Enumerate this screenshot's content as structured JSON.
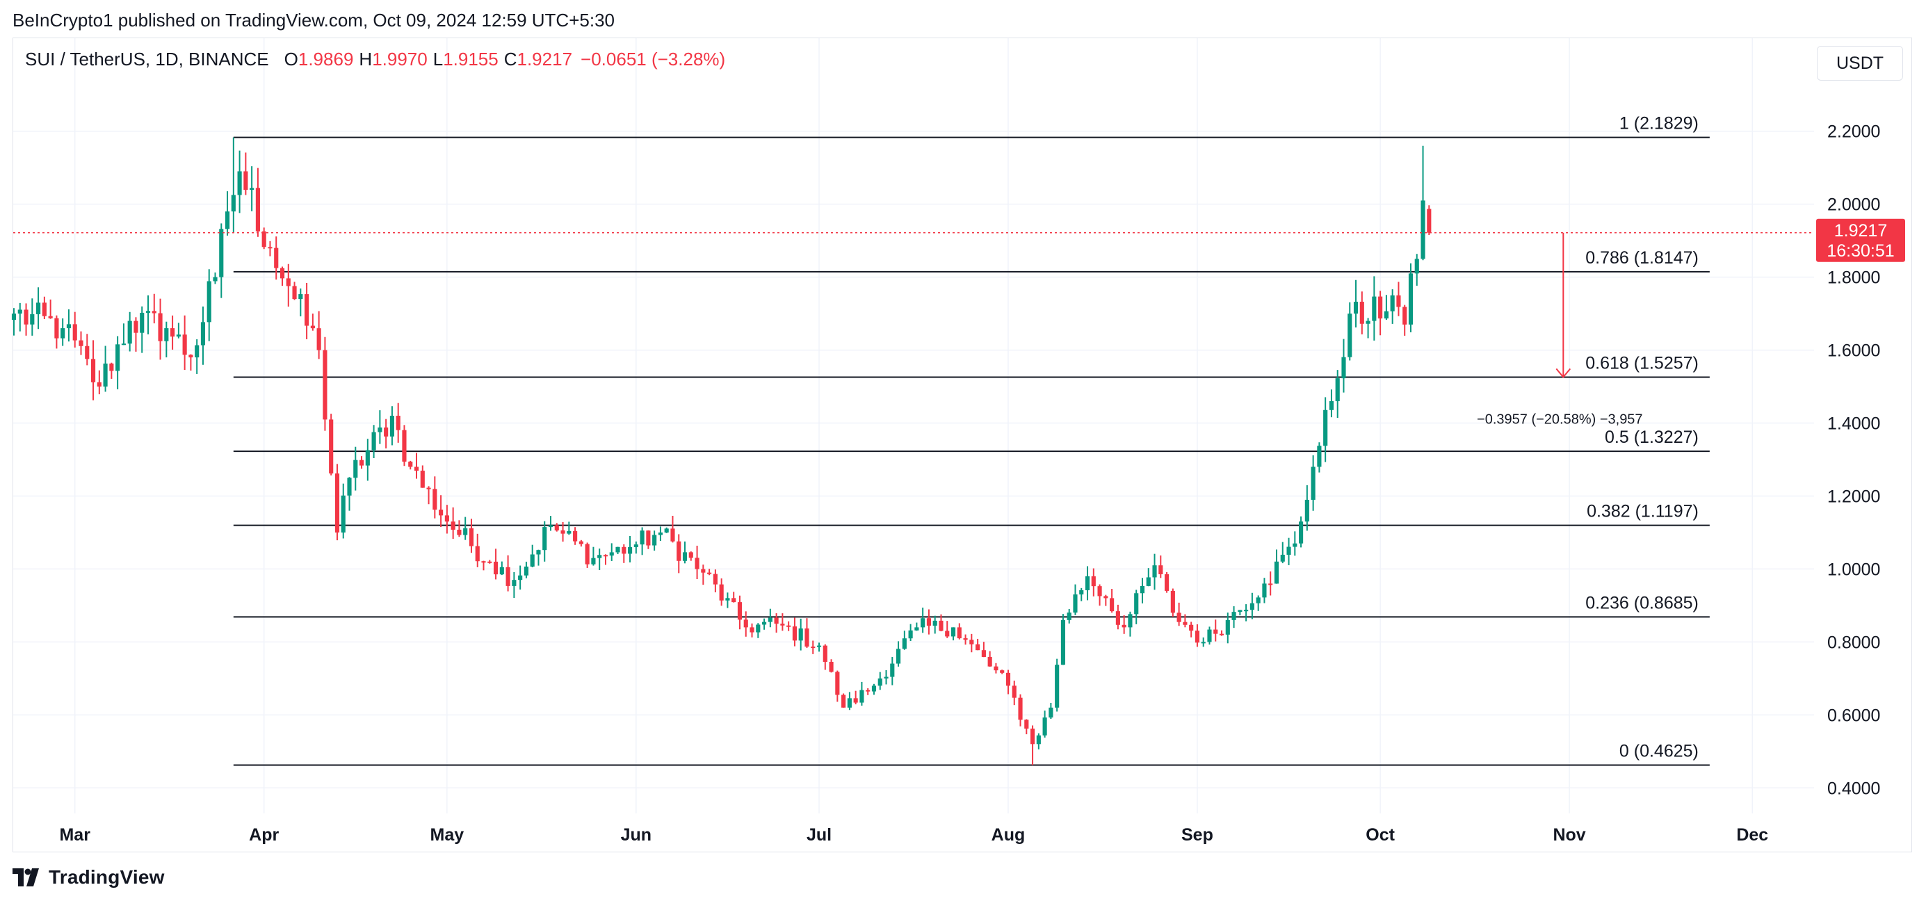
{
  "header": {
    "published_line": "BeInCrypto1 published on TradingView.com, Oct 09, 2024 12:59 UTC+5:30"
  },
  "legend": {
    "symbol": "SUI / TetherUS, 1D, BINANCE",
    "open_label": "O",
    "open": "1.9869",
    "high_label": "H",
    "high": "1.9970",
    "low_label": "L",
    "low": "1.9155",
    "close_label": "C",
    "close": "1.9217",
    "change": "−0.0651 (−3.28%)"
  },
  "currency_button": "USDT",
  "price_badge": {
    "price": "1.9217",
    "countdown": "16:30:51"
  },
  "measure_label": "−0.3957 (−20.58%) −3,957",
  "footer": {
    "brand": "TradingView"
  },
  "colors": {
    "up": "#089981",
    "down": "#f23645",
    "grid": "#f0f3fa",
    "fib_line": "#131722"
  },
  "chart_data": {
    "type": "candlestick",
    "title": "SUI / TetherUS, 1D, BINANCE",
    "ylim": [
      0.33,
      2.35
    ],
    "y_ticks": [
      "2.2000",
      "2.0000",
      "1.8000",
      "1.6000",
      "1.4000",
      "1.2000",
      "1.0000",
      "0.8000",
      "0.6000",
      "0.4000"
    ],
    "x_ticks": [
      "Mar",
      "Apr",
      "May",
      "Jun",
      "Jul",
      "Aug",
      "Sep",
      "Oct",
      "Nov",
      "Dec"
    ],
    "x_tick_dates": [
      "2024-03-01",
      "2024-04-01",
      "2024-05-01",
      "2024-06-01",
      "2024-07-01",
      "2024-08-01",
      "2024-09-01",
      "2024-10-01",
      "2024-11-01",
      "2024-12-01"
    ],
    "x_range": [
      "2024-02-20",
      "2024-12-11"
    ],
    "grid": true,
    "fib_start_date": "2024-03-27",
    "fib_end_date": "2024-11-24",
    "fib_levels": [
      {
        "label": "1 (2.1829)",
        "value": 2.1829
      },
      {
        "label": "0.786 (1.8147)",
        "value": 1.8147
      },
      {
        "label": "0.618 (1.5257)",
        "value": 1.5257
      },
      {
        "label": "0.5 (1.3227)",
        "value": 1.3227
      },
      {
        "label": "0.382 (1.1197)",
        "value": 1.1197
      },
      {
        "label": "0.236 (0.8685)",
        "value": 0.8685
      },
      {
        "label": "0 (0.4625)",
        "value": 0.4625
      }
    ],
    "last_price": 1.9217,
    "measure": {
      "date": "2024-10-31",
      "from": 1.9217,
      "to": 1.526
    },
    "anchor_closes": [
      [
        "2024-02-20",
        1.7
      ],
      [
        "2024-02-28",
        1.66
      ],
      [
        "2024-03-05",
        1.5
      ],
      [
        "2024-03-10",
        1.68
      ],
      [
        "2024-03-16",
        1.66
      ],
      [
        "2024-03-20",
        1.58
      ],
      [
        "2024-03-24",
        1.8
      ],
      [
        "2024-03-26",
        1.98
      ],
      [
        "2024-03-28",
        2.09
      ],
      [
        "2024-04-02",
        1.88
      ],
      [
        "2024-04-06",
        1.74
      ],
      [
        "2024-04-10",
        1.6
      ],
      [
        "2024-04-13",
        1.1
      ],
      [
        "2024-04-15",
        1.25
      ],
      [
        "2024-04-22",
        1.42
      ],
      [
        "2024-04-25",
        1.28
      ],
      [
        "2024-05-01",
        1.13
      ],
      [
        "2024-05-08",
        1.02
      ],
      [
        "2024-05-12",
        0.97
      ],
      [
        "2024-05-18",
        1.12
      ],
      [
        "2024-05-25",
        1.03
      ],
      [
        "2024-05-31",
        1.06
      ],
      [
        "2024-06-05",
        1.1
      ],
      [
        "2024-06-12",
        0.99
      ],
      [
        "2024-06-19",
        0.84
      ],
      [
        "2024-06-24",
        0.85
      ],
      [
        "2024-07-01",
        0.79
      ],
      [
        "2024-07-05",
        0.62
      ],
      [
        "2024-07-10",
        0.68
      ],
      [
        "2024-07-17",
        0.84
      ],
      [
        "2024-07-23",
        0.84
      ],
      [
        "2024-08-01",
        0.68
      ],
      [
        "2024-08-05",
        0.52
      ],
      [
        "2024-08-08",
        0.62
      ],
      [
        "2024-08-10",
        0.86
      ],
      [
        "2024-08-14",
        0.98
      ],
      [
        "2024-08-17",
        0.92
      ],
      [
        "2024-08-20",
        0.84
      ],
      [
        "2024-08-25",
        1.01
      ],
      [
        "2024-08-28",
        0.88
      ],
      [
        "2024-09-02",
        0.8
      ],
      [
        "2024-09-06",
        0.86
      ],
      [
        "2024-09-12",
        0.96
      ],
      [
        "2024-09-17",
        1.07
      ],
      [
        "2024-09-20",
        1.28
      ],
      [
        "2024-09-23",
        1.46
      ],
      [
        "2024-09-26",
        1.7
      ],
      [
        "2024-09-29",
        1.68
      ],
      [
        "2024-10-03",
        1.75
      ],
      [
        "2024-10-05",
        1.67
      ],
      [
        "2024-10-07",
        1.85
      ],
      [
        "2024-10-08",
        2.01
      ],
      [
        "2024-10-09",
        1.9217
      ]
    ],
    "marked_lows": [
      [
        "2024-08-05",
        0.4625
      ]
    ],
    "marked_highs": [
      [
        "2024-03-27",
        2.1829
      ],
      [
        "2024-10-08",
        2.16
      ]
    ]
  }
}
